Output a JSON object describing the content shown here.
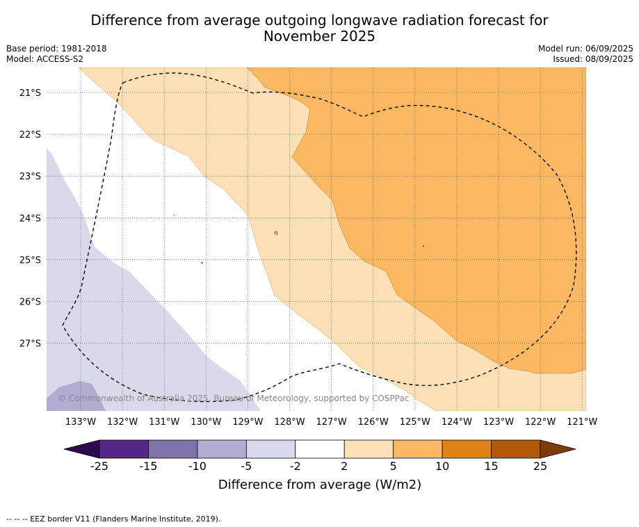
{
  "title_line1": "Difference from average outgoing longwave radiation forecast for",
  "title_line2": "November 2025",
  "meta": {
    "base_period": "Base period: 1981-2018",
    "model": "Model: ACCESS-S2",
    "model_run": "Model run: 06/09/2025",
    "issued": "Issued: 08/09/2025"
  },
  "map": {
    "longitude_labels": [
      "133°W",
      "132°W",
      "131°W",
      "130°W",
      "129°W",
      "128°W",
      "127°W",
      "126°W",
      "125°W",
      "124°W",
      "123°W",
      "122°W",
      "121°W"
    ],
    "latitude_labels": [
      "21°S",
      "22°S",
      "23°S",
      "24°S",
      "25°S",
      "26°S",
      "27°S"
    ],
    "copyright": "© Commonwealth of Australia 2025, Bureau of Meteorology, supported by COSPPac"
  },
  "colorbar": {
    "ticks": [
      "-25",
      "-15",
      "-10",
      "-5",
      "-2",
      "2",
      "5",
      "10",
      "15",
      "25"
    ],
    "colors": [
      "#2d0a4e",
      "#542788",
      "#8073ac",
      "#b2abd2",
      "#d8daeb",
      "#ffffff",
      "#fee0b6",
      "#fdb863",
      "#e08214",
      "#b35806",
      "#7f3b08"
    ],
    "label": "Difference from average (W/m2)"
  },
  "footer": "--  --  -- EEZ border V11 (Flanders Marine Institute, 2019)."
}
